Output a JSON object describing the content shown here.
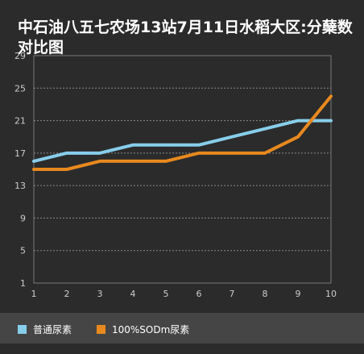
{
  "chart_data": {
    "type": "line",
    "title": "中石油八五七农场13站7月11日水稻大区:分蘖数对比图",
    "xlabel": "",
    "ylabel": "",
    "x": [
      1,
      2,
      3,
      4,
      5,
      6,
      7,
      8,
      9,
      10
    ],
    "ylim": [
      1,
      29
    ],
    "yticks": [
      1,
      5,
      9,
      13,
      17,
      21,
      25,
      29
    ],
    "grid": true,
    "legend_placement": "bottom",
    "series": [
      {
        "name": "普通尿素",
        "color": "#87ceeb",
        "values": [
          16,
          17,
          17,
          18,
          18,
          18,
          19,
          20,
          21,
          21
        ]
      },
      {
        "name": "100%SODm尿素",
        "color": "#e8891e",
        "values": [
          15,
          15,
          16,
          16,
          16,
          17,
          17,
          17,
          19,
          24
        ]
      }
    ]
  },
  "colors": {
    "background": "#2b2b2b",
    "legend_background": "#454545",
    "grid": "#8a8a8a",
    "axis_text": "#cccccc"
  }
}
